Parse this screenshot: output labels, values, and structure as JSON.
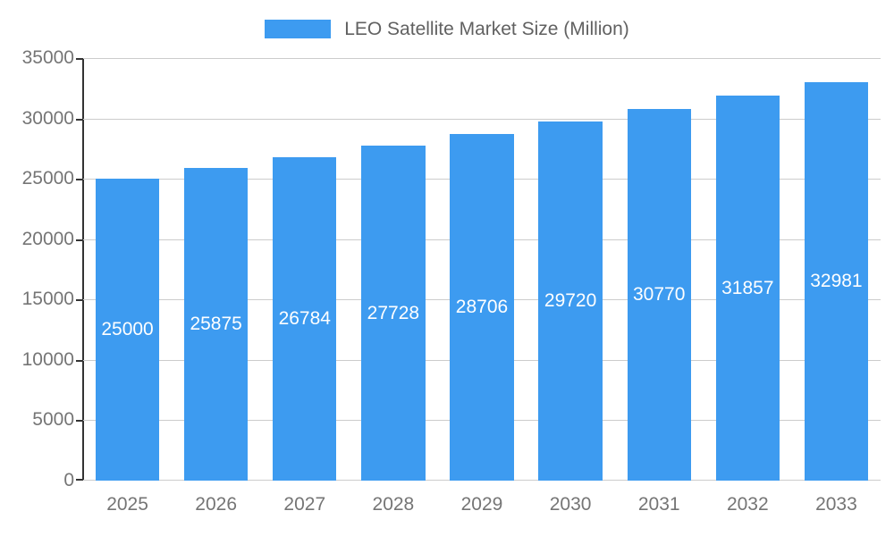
{
  "chart_data": {
    "type": "bar",
    "title": "LEO Satellite Market Size (Million)",
    "series_name": "LEO Satellite Market Size (Million)",
    "categories": [
      "2025",
      "2026",
      "2027",
      "2028",
      "2029",
      "2030",
      "2031",
      "2032",
      "2033"
    ],
    "values": [
      25000,
      25875,
      26784,
      27728,
      28706,
      29720,
      30770,
      31857,
      32981
    ],
    "xlabel": "",
    "ylabel": "",
    "ylim": [
      0,
      35000
    ],
    "yticks": [
      0,
      5000,
      10000,
      15000,
      20000,
      25000,
      30000,
      35000
    ],
    "grid": true,
    "legend_position": "top",
    "bar_color": "#3d9bf0",
    "value_label_color": "#ffffff",
    "axis_label_color": "#757575",
    "title_color": "#616161",
    "gridline_color": "#cccccc",
    "axis_line_color": "#333333"
  }
}
